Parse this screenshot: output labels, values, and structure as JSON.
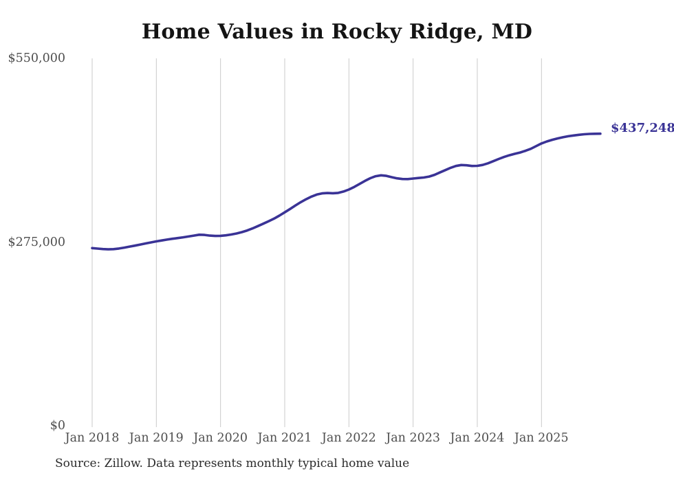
{
  "chart": {
    "title": "Home Values in Rocky Ridge, MD",
    "end_label": "$437,248",
    "source": "Source: Zillow. Data represents monthly typical home value"
  },
  "chart_data": {
    "type": "line",
    "title": "Home Values in Rocky Ridge, MD",
    "series_name": "Monthly typical home value",
    "x_start": "Jan 2018",
    "x_end": "Dec 2025",
    "x_tick_labels": [
      "Jan 2018",
      "Jan 2019",
      "Jan 2020",
      "Jan 2021",
      "Jan 2022",
      "Jan 2023",
      "Jan 2024",
      "Jan 2025"
    ],
    "y_ticks": [
      {
        "value": 0,
        "label": "$0"
      },
      {
        "value": 275000,
        "label": "$275,000"
      },
      {
        "value": 550000,
        "label": "$550,000"
      }
    ],
    "ylim": [
      0,
      550000
    ],
    "grid": "vertical-only",
    "legend": "none",
    "line_color": "#3a3396",
    "gridline_color": "#cacaca",
    "final_value": 437248,
    "final_value_label": "$437,248",
    "values": [
      266000,
      265200,
      264500,
      264100,
      264400,
      265300,
      266700,
      268200,
      269700,
      271300,
      272900,
      274500,
      276000,
      277400,
      278700,
      279900,
      281000,
      282100,
      283300,
      284700,
      286000,
      285700,
      284700,
      284200,
      284400,
      285100,
      286300,
      287900,
      289900,
      292400,
      295500,
      299000,
      302600,
      306300,
      310100,
      314600,
      319500,
      324600,
      329700,
      334700,
      339200,
      343100,
      346100,
      347900,
      348400,
      348100,
      348600,
      350700,
      353600,
      357600,
      362100,
      366600,
      370600,
      373600,
      374900,
      374100,
      372100,
      370400,
      369400,
      369300,
      370100,
      370900,
      371600,
      373100,
      375600,
      379100,
      382600,
      386100,
      388900,
      390300,
      389900,
      388900,
      389100,
      390400,
      392900,
      396100,
      399400,
      402400,
      404900,
      407100,
      409100,
      411600,
      414600,
      418600,
      422600,
      425600,
      428100,
      430100,
      431900,
      433400,
      434600,
      435600,
      436400,
      436900,
      437150,
      437248
    ]
  }
}
